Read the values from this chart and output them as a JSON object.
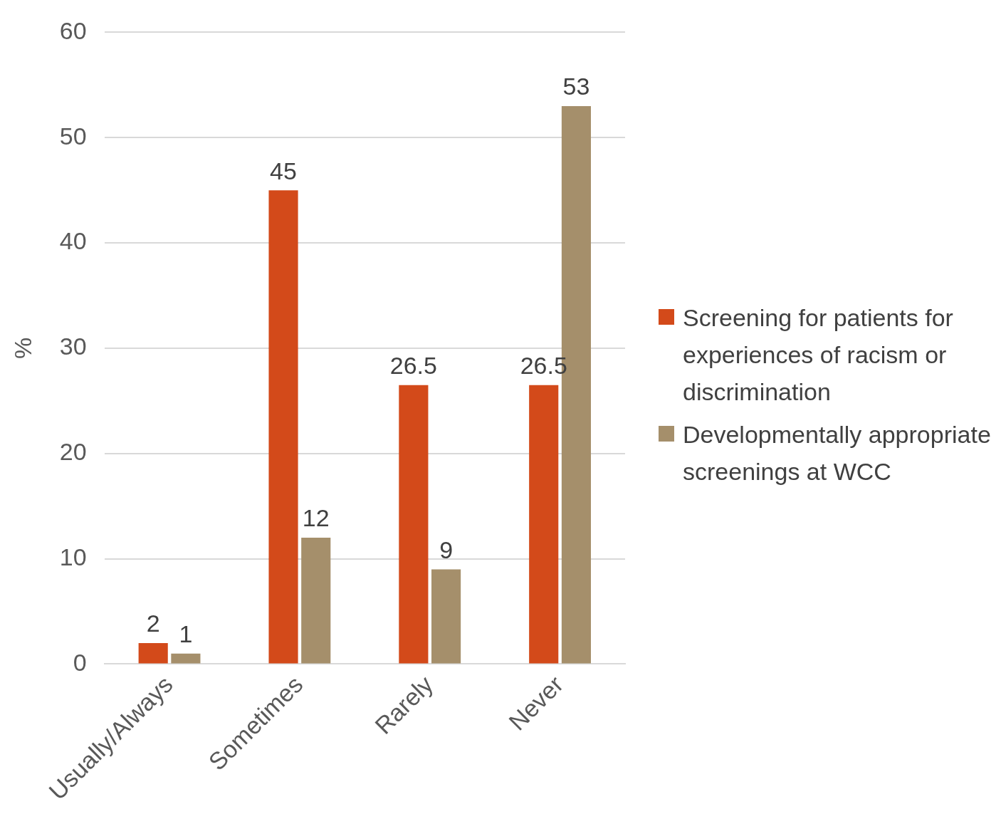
{
  "chart_data": {
    "type": "bar",
    "categories": [
      "Usually/Always",
      "Sometimes",
      "Rarely",
      "Never"
    ],
    "ylabel": "%",
    "series": [
      {
        "name": "Screening for patients for experiences of racism or discrimination",
        "color": "#d34a1a",
        "values": [
          2,
          45,
          26.5,
          26.5
        ]
      },
      {
        "name": "Developmentally appropriate screenings at WCC",
        "color": "#a58f6b",
        "values": [
          1,
          12,
          9,
          53
        ]
      }
    ],
    "ylim": [
      0,
      60
    ],
    "yticks": [
      0,
      10,
      20,
      30,
      40,
      50,
      60
    ],
    "grid": "y",
    "legend": "right",
    "data_labels": true
  }
}
